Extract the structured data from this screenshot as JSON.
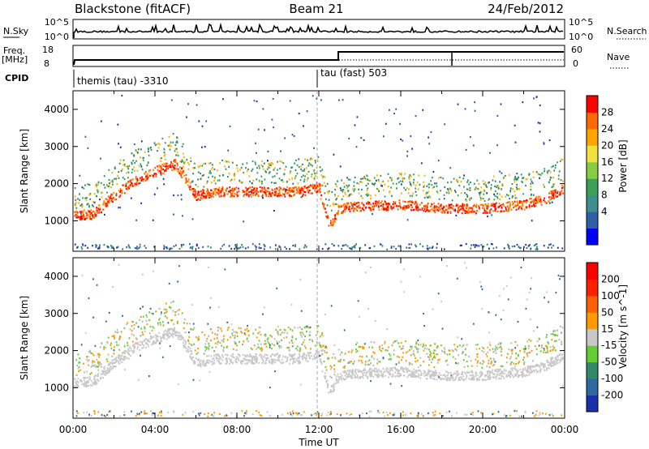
{
  "header": {
    "station": "Blackstone (fitACF)",
    "beam": "Beam 21",
    "date": "24/Feb/2012"
  },
  "top_panels": {
    "nsky_label": "N.Sky",
    "nsky_ticks": [
      "10^5",
      "10^0"
    ],
    "nsearch_label": "N.Search",
    "nsearch_ticks": [
      "10^5",
      "10^0"
    ],
    "freq_label": "Freq.",
    "freq_unit": "[MHz]",
    "freq_ticks": [
      "18",
      "8"
    ],
    "nave_label": "Nave",
    "nave_ticks": [
      "60",
      "0"
    ],
    "cpid_label": "CPID",
    "cpid_segments": [
      {
        "label": "themis (tau) -3310",
        "start_hour": 0,
        "end_hour": 12
      },
      {
        "label": "tau (fast) 503",
        "start_hour": 12,
        "end_hour": 24
      }
    ]
  },
  "chart_data": [
    {
      "type": "heatmap",
      "panel": "power",
      "title": "",
      "xlabel": "",
      "ylabel": "Slant Range [km]",
      "colorbar_label": "Power [dB]",
      "colorbar_ticks": [
        "28",
        "24",
        "20",
        "16",
        "12",
        "8",
        "4"
      ],
      "colorbar_colors": [
        "#0000ff",
        "#2e5fa8",
        "#3e8e8e",
        "#3aa05a",
        "#88cc44",
        "#f0e040",
        "#ffa500",
        "#ff6a00",
        "#ff0000"
      ],
      "ylim": [
        180,
        4500
      ],
      "yticks": [
        1000,
        2000,
        3000,
        4000
      ],
      "xlim": [
        0,
        24
      ],
      "bands": [
        {
          "x": [
            0,
            1,
            2,
            3,
            4,
            5,
            6,
            7,
            8,
            9,
            10,
            11,
            12,
            12.5,
            13,
            14,
            16,
            18,
            20,
            22,
            23,
            24
          ],
          "y": [
            1150,
            1200,
            1700,
            2100,
            2350,
            2550,
            1700,
            1800,
            1800,
            1800,
            1800,
            1800,
            1900,
            1000,
            1350,
            1400,
            1450,
            1350,
            1350,
            1450,
            1600,
            1900
          ],
          "level": "high"
        }
      ]
    },
    {
      "type": "heatmap",
      "panel": "velocity",
      "title": "",
      "xlabel": "Time UT",
      "ylabel": "Slant Range [km]",
      "colorbar_label": "Velocity [m s^-1]",
      "colorbar_ticks": [
        "200",
        "100",
        "50",
        "15",
        "-15",
        "-50",
        "-100",
        "-200"
      ],
      "colorbar_colors": [
        "#1a2faa",
        "#2e6aa0",
        "#2e8a6a",
        "#66cc33",
        "#c8c8c8",
        "#ff9900",
        "#ff6000",
        "#ff2000",
        "#ff0000"
      ],
      "ylim": [
        180,
        4500
      ],
      "yticks": [
        1000,
        2000,
        3000,
        4000
      ],
      "xlim": [
        0,
        24
      ],
      "xticks": [
        "00:00",
        "04:00",
        "08:00",
        "12:00",
        "16:00",
        "20:00",
        "00:00"
      ]
    }
  ]
}
